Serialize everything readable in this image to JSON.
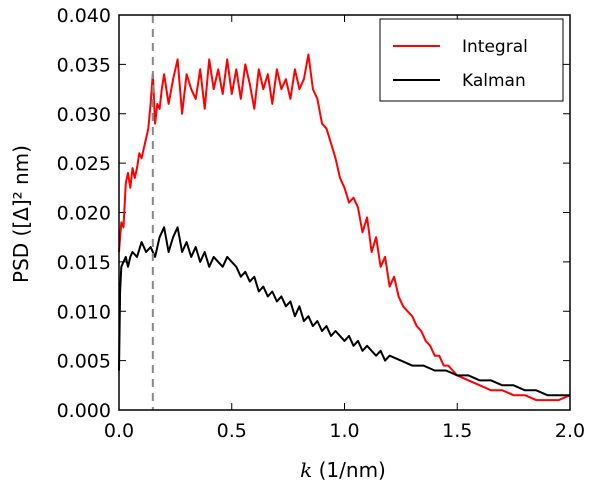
{
  "chart_data": {
    "type": "line",
    "xlabel_var": "k",
    "xlabel_unit": " (1/nm)",
    "ylabel": "PSD ([Δ]² nm)",
    "xlim": [
      0.0,
      2.0
    ],
    "ylim": [
      0.0,
      0.04
    ],
    "xticks": [
      "0.0",
      "0.5",
      "1.0",
      "1.5",
      "2.0"
    ],
    "yticks": [
      "0.000",
      "0.005",
      "0.010",
      "0.015",
      "0.020",
      "0.025",
      "0.030",
      "0.035",
      "0.040"
    ],
    "grid": false,
    "legend_position": "top-right",
    "vline": {
      "x": 0.15,
      "color": "#888888",
      "style": "dashed"
    },
    "series": [
      {
        "name": "Integral",
        "color": "#ff0000",
        "x": [
          0.0,
          0.01,
          0.02,
          0.03,
          0.04,
          0.05,
          0.06,
          0.07,
          0.08,
          0.09,
          0.1,
          0.11,
          0.12,
          0.13,
          0.14,
          0.15,
          0.16,
          0.17,
          0.18,
          0.19,
          0.2,
          0.22,
          0.24,
          0.26,
          0.28,
          0.3,
          0.32,
          0.34,
          0.36,
          0.38,
          0.4,
          0.42,
          0.44,
          0.46,
          0.48,
          0.5,
          0.52,
          0.54,
          0.56,
          0.58,
          0.6,
          0.62,
          0.64,
          0.66,
          0.68,
          0.7,
          0.72,
          0.74,
          0.76,
          0.78,
          0.8,
          0.82,
          0.84,
          0.86,
          0.88,
          0.9,
          0.92,
          0.94,
          0.96,
          0.98,
          1.0,
          1.02,
          1.04,
          1.06,
          1.08,
          1.1,
          1.12,
          1.14,
          1.16,
          1.18,
          1.2,
          1.22,
          1.24,
          1.26,
          1.28,
          1.3,
          1.32,
          1.34,
          1.36,
          1.38,
          1.4,
          1.42,
          1.44,
          1.46,
          1.48,
          1.5,
          1.55,
          1.6,
          1.65,
          1.7,
          1.75,
          1.8,
          1.85,
          1.9,
          1.95,
          2.0
        ],
        "y": [
          0.016,
          0.019,
          0.0185,
          0.023,
          0.024,
          0.0225,
          0.0245,
          0.0235,
          0.0245,
          0.026,
          0.0255,
          0.0265,
          0.0275,
          0.0285,
          0.031,
          0.034,
          0.029,
          0.031,
          0.0305,
          0.0325,
          0.034,
          0.031,
          0.0335,
          0.0355,
          0.03,
          0.034,
          0.0325,
          0.0315,
          0.0345,
          0.0305,
          0.0355,
          0.0325,
          0.0345,
          0.032,
          0.0355,
          0.032,
          0.0345,
          0.0315,
          0.035,
          0.033,
          0.0305,
          0.0345,
          0.0325,
          0.034,
          0.031,
          0.0345,
          0.0325,
          0.0335,
          0.0315,
          0.0345,
          0.0325,
          0.0335,
          0.036,
          0.0325,
          0.0315,
          0.029,
          0.0285,
          0.027,
          0.0255,
          0.0235,
          0.0225,
          0.021,
          0.0215,
          0.0205,
          0.018,
          0.0195,
          0.016,
          0.0175,
          0.0145,
          0.0155,
          0.0125,
          0.0135,
          0.0115,
          0.0105,
          0.01,
          0.0095,
          0.0085,
          0.008,
          0.007,
          0.0065,
          0.0055,
          0.0055,
          0.0045,
          0.0045,
          0.004,
          0.0035,
          0.003,
          0.0025,
          0.002,
          0.002,
          0.0015,
          0.0015,
          0.001,
          0.001,
          0.001,
          0.0015
        ]
      },
      {
        "name": "Kalman",
        "color": "#000000",
        "x": [
          0.0,
          0.005,
          0.01,
          0.02,
          0.03,
          0.04,
          0.05,
          0.06,
          0.08,
          0.1,
          0.12,
          0.14,
          0.16,
          0.18,
          0.2,
          0.22,
          0.24,
          0.26,
          0.28,
          0.3,
          0.32,
          0.34,
          0.36,
          0.38,
          0.4,
          0.42,
          0.44,
          0.46,
          0.48,
          0.5,
          0.52,
          0.54,
          0.56,
          0.58,
          0.6,
          0.62,
          0.64,
          0.66,
          0.68,
          0.7,
          0.72,
          0.74,
          0.76,
          0.78,
          0.8,
          0.82,
          0.84,
          0.86,
          0.88,
          0.9,
          0.92,
          0.94,
          0.96,
          0.98,
          1.0,
          1.02,
          1.04,
          1.06,
          1.08,
          1.1,
          1.12,
          1.14,
          1.16,
          1.18,
          1.2,
          1.25,
          1.3,
          1.35,
          1.4,
          1.45,
          1.5,
          1.55,
          1.6,
          1.65,
          1.7,
          1.75,
          1.8,
          1.85,
          1.9,
          1.95,
          2.0
        ],
        "y": [
          0.004,
          0.012,
          0.0145,
          0.015,
          0.0155,
          0.0145,
          0.0155,
          0.016,
          0.0155,
          0.017,
          0.016,
          0.0165,
          0.0155,
          0.0175,
          0.0185,
          0.016,
          0.0175,
          0.0185,
          0.016,
          0.017,
          0.0155,
          0.0165,
          0.015,
          0.016,
          0.0145,
          0.0155,
          0.015,
          0.0145,
          0.0155,
          0.015,
          0.0145,
          0.0135,
          0.014,
          0.013,
          0.0135,
          0.012,
          0.0125,
          0.0115,
          0.012,
          0.011,
          0.0115,
          0.0105,
          0.011,
          0.0095,
          0.0105,
          0.009,
          0.0095,
          0.0085,
          0.009,
          0.008,
          0.0085,
          0.0075,
          0.008,
          0.0075,
          0.007,
          0.0075,
          0.0065,
          0.007,
          0.006,
          0.0065,
          0.006,
          0.0055,
          0.006,
          0.005,
          0.0055,
          0.005,
          0.0045,
          0.0045,
          0.004,
          0.004,
          0.0035,
          0.0035,
          0.003,
          0.003,
          0.0025,
          0.0025,
          0.002,
          0.002,
          0.0015,
          0.0015,
          0.0015
        ]
      }
    ]
  }
}
